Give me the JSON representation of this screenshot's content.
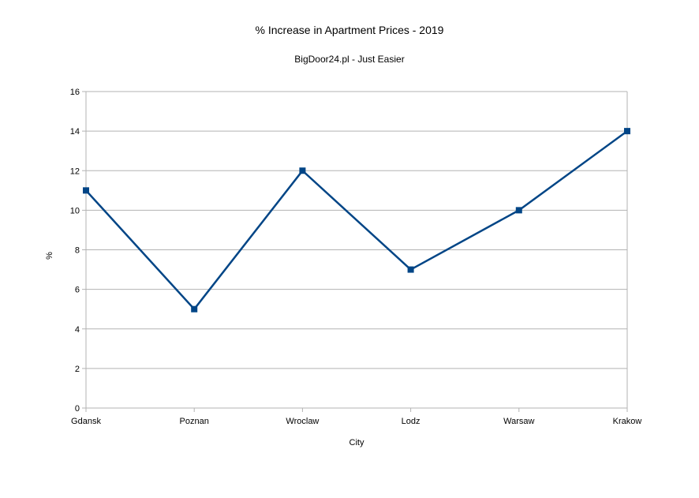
{
  "chart_data": {
    "type": "line",
    "title": "% Increase in Apartment Prices - 2019",
    "subtitle": "BigDoor24.pl - Just Easier",
    "xlabel": "City",
    "ylabel": "%",
    "categories": [
      "Gdansk",
      "Poznan",
      "Wroclaw",
      "Lodz",
      "Warsaw",
      "Krakow"
    ],
    "series": [
      {
        "values": [
          11,
          5,
          12,
          7,
          10,
          14
        ],
        "color": "#004586",
        "marker": "square"
      }
    ],
    "ylim": [
      0,
      16
    ],
    "yticks": [
      0,
      2,
      4,
      6,
      8,
      10,
      12,
      14,
      16
    ],
    "grid": true,
    "grid_color": "#b3b3b3",
    "legend": "none"
  }
}
